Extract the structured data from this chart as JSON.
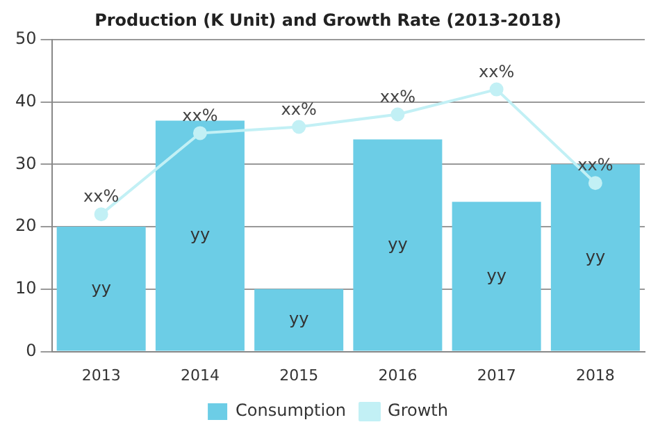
{
  "chart_data": {
    "type": "bar",
    "title": "Production (K Unit) and Growth Rate (2013-2018)",
    "categories": [
      "2013",
      "2014",
      "2015",
      "2016",
      "2017",
      "2018"
    ],
    "series": [
      {
        "name": "Consumption",
        "color": "#6ccde6",
        "values": [
          20,
          37,
          10,
          34,
          24,
          30
        ],
        "value_labels": [
          "yy",
          "yy",
          "yy",
          "yy",
          "yy",
          "yy"
        ]
      },
      {
        "name": "Growth",
        "type": "line",
        "color": "#c2f0f5",
        "values": [
          22,
          35,
          36,
          38,
          42,
          27
        ],
        "value_labels": [
          "xx%",
          "xx%",
          "xx%",
          "xx%",
          "xx%",
          "xx%"
        ],
        "marker": "circle"
      }
    ],
    "ylim": [
      0,
      50
    ],
    "yticks": [
      0,
      10,
      20,
      30,
      40,
      50
    ],
    "grid": "y",
    "legend": "bottom"
  }
}
